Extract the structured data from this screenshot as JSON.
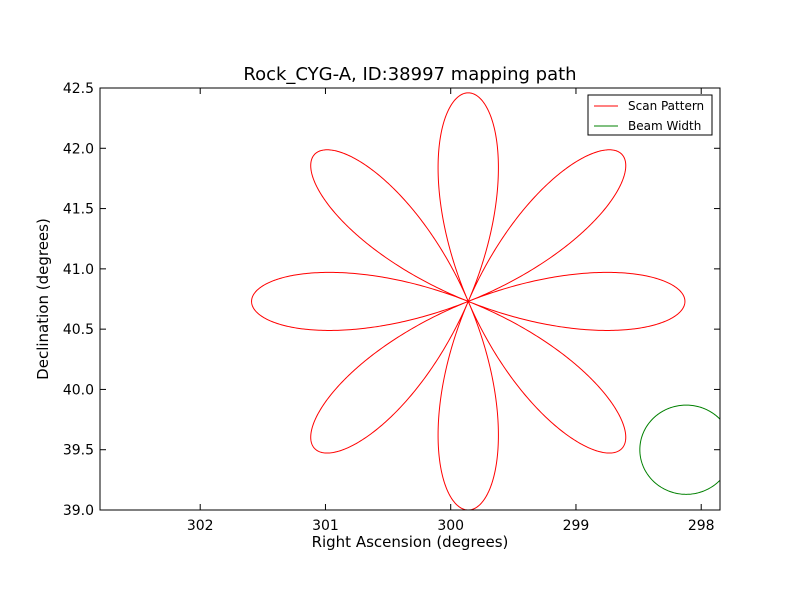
{
  "chart_data": {
    "type": "line",
    "title": "Rock_CYG-A, ID:38997 mapping path",
    "xlabel": "Right Ascension (degrees)",
    "ylabel": "Declination (degrees)",
    "xlim": [
      302.8,
      297.85
    ],
    "ylim": [
      39.0,
      42.5
    ],
    "x_inverted": true,
    "xticks": [
      302,
      301,
      300,
      299,
      298
    ],
    "xtick_labels": [
      "302",
      "301",
      "300",
      "299",
      "298"
    ],
    "yticks": [
      39.0,
      39.5,
      40.0,
      40.5,
      41.0,
      41.5,
      42.0,
      42.5
    ],
    "ytick_labels": [
      "39.0",
      "39.5",
      "40.0",
      "40.5",
      "41.0",
      "41.5",
      "42.0",
      "42.5"
    ],
    "grid": false,
    "legend_position": "top-right",
    "series": [
      {
        "name": "Scan Pattern",
        "color": "#ff0000",
        "kind": "rose",
        "center": [
          299.86,
          40.73
        ],
        "petals": 8,
        "max_radius_deg": 1.73
      },
      {
        "name": "Beam Width",
        "color": "#008000",
        "kind": "circle",
        "center": [
          298.12,
          39.5
        ],
        "radius_deg": 0.37
      }
    ]
  }
}
